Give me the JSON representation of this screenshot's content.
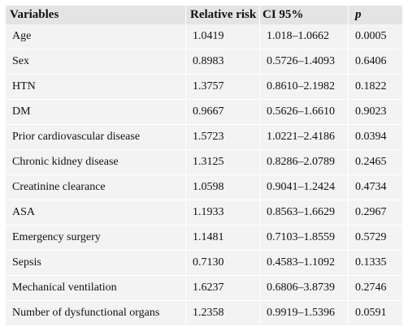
{
  "table": {
    "headers": [
      "Variables",
      "Relative risk",
      "CI 95%",
      "p"
    ],
    "rows": [
      [
        "Age",
        "1.0419",
        "1.018–1.0662",
        "0.0005"
      ],
      [
        "Sex",
        "0.8983",
        "0.5726–1.4093",
        "0.6406"
      ],
      [
        "HTN",
        "1.3757",
        "0.8610–2.1982",
        "0.1822"
      ],
      [
        "DM",
        "0.9667",
        "0.5626–1.6610",
        "0.9023"
      ],
      [
        "Prior cardiovascular disease",
        "1.5723",
        "1.0221–2.4186",
        "0.0394"
      ],
      [
        "Chronic kidney disease",
        "1.3125",
        "0.8286–2.0789",
        "0.2465"
      ],
      [
        "Creatinine clearance",
        "1.0598",
        "0.9041–1.2424",
        "0.4734"
      ],
      [
        "ASA",
        "1.1933",
        "0.8563–1.6629",
        "0.2967"
      ],
      [
        "Emergency surgery",
        "1.1481",
        "0.7103–1.8559",
        "0.5729"
      ],
      [
        "Sepsis",
        "0.7130",
        "0.4583–1.1092",
        "0.1335"
      ],
      [
        "Mechanical ventilation",
        "1.6237",
        "0.6806–3.8739",
        "0.2746"
      ],
      [
        "Number of dysfunctional organs",
        "1.2358",
        "0.9919–1.5396",
        "0.0591"
      ]
    ]
  }
}
